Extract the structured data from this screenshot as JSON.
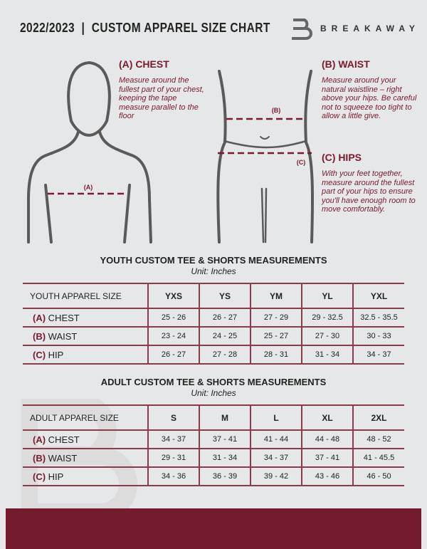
{
  "header": {
    "title": "2022/2023  |  CUSTOM APPAREL SIZE CHART",
    "brand": "BREAKAWAY"
  },
  "guide": {
    "chest": {
      "heading": "(A) CHEST",
      "marker": "(A)",
      "text": "Measure around the fullest part of your chest, keeping the tape measure parallel to the floor"
    },
    "waist": {
      "heading": "(B) WAIST",
      "marker": "(B)",
      "text": "Measure around your natural waistline – right above your hips. Be careful not to squeeze too tight to allow a little give."
    },
    "hips": {
      "heading": "(C) HIPS",
      "marker": "(C)",
      "text": "With your feet together, measure around the fullest part of your hips to ensure you'll have enough room to move comfortably."
    }
  },
  "youth": {
    "title": "YOUTH CUSTOM TEE & SHORTS MEASUREMENTS",
    "unit": "Unit: Inches",
    "size_label": "YOUTH APPAREL SIZE",
    "sizes": [
      "YXS",
      "YS",
      "YM",
      "YL",
      "YXL"
    ],
    "rows": [
      {
        "code": "(A)",
        "name": "CHEST",
        "values": [
          "25 - 26",
          "26 - 27",
          "27 - 29",
          "29 - 32.5",
          "32.5 - 35.5"
        ]
      },
      {
        "code": "(B)",
        "name": "WAIST",
        "values": [
          "23 - 24",
          "24 - 25",
          "25 - 27",
          "27 - 30",
          "30 - 33"
        ]
      },
      {
        "code": "(C)",
        "name": "HIP",
        "values": [
          "26 - 27",
          "27 - 28",
          "28 - 31",
          "31 - 34",
          "34 - 37"
        ]
      }
    ]
  },
  "adult": {
    "title": "ADULT CUSTOM TEE & SHORTS MEASUREMENTS",
    "unit": "Unit: Inches",
    "size_label": "ADULT APPAREL SIZE",
    "sizes": [
      "S",
      "M",
      "L",
      "XL",
      "2XL"
    ],
    "rows": [
      {
        "code": "(A)",
        "name": "CHEST",
        "values": [
          "34 - 37",
          "37 - 41",
          "41 - 44",
          "44 - 48",
          "48 - 52"
        ]
      },
      {
        "code": "(B)",
        "name": "WAIST",
        "values": [
          "29 - 31",
          "31 - 34",
          "34 - 37",
          "37 - 41",
          "41 - 45.5"
        ]
      },
      {
        "code": "(C)",
        "name": "HIP",
        "values": [
          "34 - 36",
          "36 - 39",
          "39 - 42",
          "43 - 46",
          "46 - 50"
        ]
      }
    ]
  },
  "colors": {
    "accent": "#7a1a2e",
    "background": "#e6e7e8"
  }
}
